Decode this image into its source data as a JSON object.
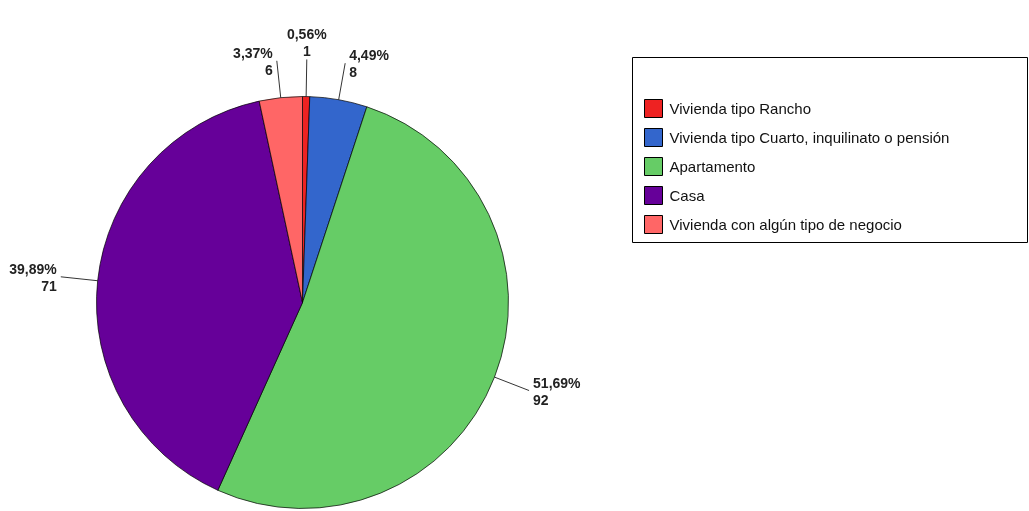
{
  "chart_data": {
    "type": "pie",
    "categories": [
      "Vivienda tipo Rancho",
      "Vivienda tipo Cuarto, inquilinato o pensión",
      "Apartamento",
      "Casa",
      "Vivienda con algún tipo de negocio"
    ],
    "values": [
      1,
      8,
      92,
      71,
      6
    ],
    "colors": [
      "#ee2222",
      "#3366cc",
      "#66cc66",
      "#660099",
      "#ff6666"
    ],
    "value_labels": [
      "0,56%\n1",
      "4,49%\n8",
      "51,69%\n92",
      "39,89%\n71",
      "3,37%\n6"
    ],
    "legend": "right"
  }
}
